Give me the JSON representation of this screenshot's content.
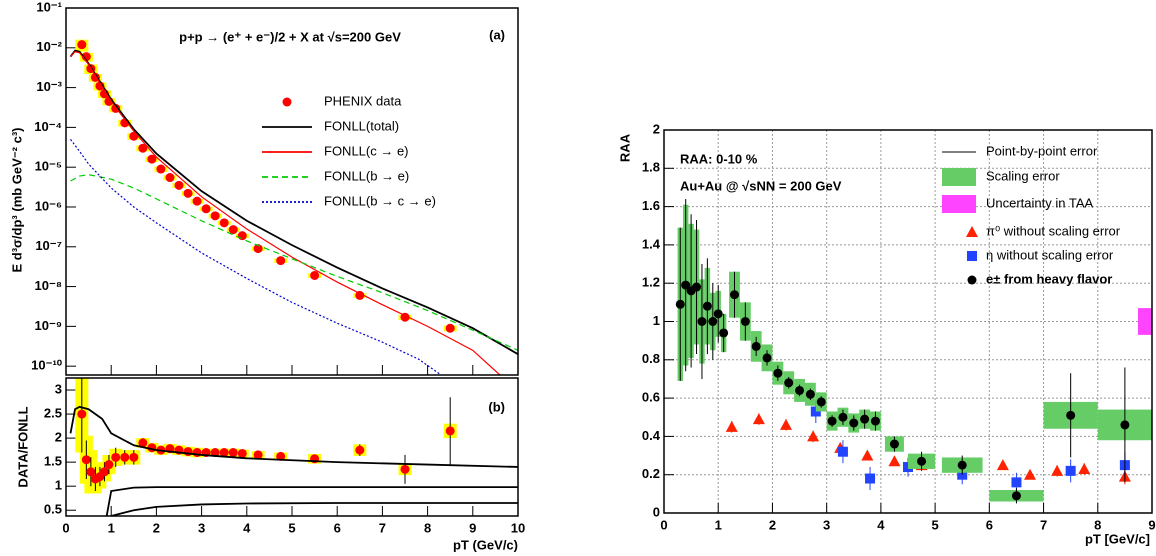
{
  "chart_data": [
    {
      "type": "scatter",
      "ylog": true,
      "panel_label": "(a)",
      "title": "p+p → (e⁺ + e⁻)/2 + X at √s=200 GeV",
      "ylabel": "E d³σ/dp³ (mb GeV⁻² c³)",
      "xlim": [
        0,
        10
      ],
      "xticks": [
        0,
        1,
        2,
        3,
        4,
        5,
        6,
        7,
        8,
        9,
        10
      ],
      "show_xtick_labels": false,
      "ylim": [
        6e-11,
        0.1
      ],
      "yticks": [
        {
          "value": 1e-10,
          "label": "10⁻¹⁰"
        },
        {
          "value": 1e-09,
          "label": "10⁻⁹"
        },
        {
          "value": 1e-08,
          "label": "10⁻⁸"
        },
        {
          "value": 1e-07,
          "label": "10⁻⁷"
        },
        {
          "value": 1e-06,
          "label": "10⁻⁶"
        },
        {
          "value": 1e-05,
          "label": "10⁻⁵"
        },
        {
          "value": 0.0001,
          "label": "10⁻⁴"
        },
        {
          "value": 0.001,
          "label": "10⁻³"
        },
        {
          "value": 0.01,
          "label": "10⁻²"
        },
        {
          "value": 0.1,
          "label": "10⁻¹"
        }
      ],
      "grid": false,
      "sys_color": "#ffff00",
      "series": [
        {
          "name": "PHENIX data",
          "mark": "circle",
          "color": "#ff0000",
          "x": [
            0.35,
            0.45,
            0.55,
            0.65,
            0.75,
            0.85,
            0.95,
            1.1,
            1.3,
            1.5,
            1.7,
            1.9,
            2.1,
            2.3,
            2.5,
            2.7,
            2.9,
            3.1,
            3.3,
            3.5,
            3.7,
            3.9,
            4.25,
            4.75,
            5.5,
            6.5,
            7.5,
            8.5
          ],
          "values": [
            0.012,
            0.006,
            0.003,
            0.0018,
            0.0011,
            0.0007,
            0.00045,
            0.0003,
            0.00013,
            6e-05,
            3e-05,
            1.6e-05,
            9e-06,
            5.5e-06,
            3.5e-06,
            2.2e-06,
            1.4e-06,
            9e-07,
            6e-07,
            4e-07,
            2.7e-07,
            1.9e-07,
            9e-08,
            4.5e-08,
            1.9e-08,
            6e-09,
            1.7e-09,
            9e-10
          ],
          "sys": [
            0.004,
            0.0015,
            0.0008,
            0.0004,
            0.00025,
            0.00015,
            9e-05,
            6e-05,
            2.5e-05,
            1.1e-05,
            5e-06,
            2.5e-06,
            1.4e-06,
            8e-07,
            5e-07,
            3e-07,
            1.9e-07,
            1.2e-07,
            8e-08,
            5e-08,
            3.5e-08,
            2.5e-08,
            1.2e-08,
            6e-09,
            2.5e-09,
            8e-10,
            2.5e-10,
            1.5e-10
          ]
        },
        {
          "name": "FONLL(total)",
          "mark": "line",
          "color": "#000000",
          "x": [
            0.1,
            0.2,
            0.3,
            0.5,
            1,
            1.5,
            2,
            3,
            4,
            5,
            6,
            7,
            8,
            9,
            10
          ],
          "values": [
            0.006,
            0.0085,
            0.008,
            0.004,
            0.0005,
            9e-05,
            2.2e-05,
            2.5e-06,
            4.5e-07,
            1.1e-07,
            3e-08,
            9e-09,
            3e-09,
            9e-10,
            2e-10
          ]
        },
        {
          "name": "FONLL(c → e)",
          "mark": "line",
          "color": "#ff0000",
          "x": [
            0.1,
            0.2,
            0.3,
            0.5,
            1,
            1.5,
            2,
            3,
            4,
            5,
            6,
            7,
            8,
            9,
            9.6
          ],
          "values": [
            0.006,
            0.008,
            0.0075,
            0.0038,
            0.00045,
            8e-05,
            1.8e-05,
            1.8e-06,
            2.8e-07,
            5.5e-08,
            1.3e-08,
            3.5e-09,
            1e-09,
            2.5e-10,
            6e-11
          ]
        },
        {
          "name": "FONLL(b → e)",
          "mark": "dashed",
          "color": "#00cc00",
          "x": [
            0.1,
            0.3,
            0.5,
            1,
            1.5,
            2,
            3,
            4,
            5,
            6,
            7,
            8,
            9,
            10
          ],
          "values": [
            4.5e-06,
            6e-06,
            6.5e-06,
            5e-06,
            3e-06,
            1.6e-06,
            4.5e-07,
            1.4e-07,
            5e-08,
            1.8e-08,
            7e-09,
            2.5e-09,
            8e-10,
            2.5e-10
          ]
        },
        {
          "name": "FONLL(b → c → e)",
          "mark": "dotted",
          "color": "#0000cc",
          "x": [
            0.1,
            0.3,
            0.5,
            1,
            1.5,
            2,
            3,
            4,
            5,
            6,
            7,
            7.8,
            8.3
          ],
          "values": [
            5e-05,
            2.5e-05,
            1.2e-05,
            3e-06,
            1e-06,
            4e-07,
            7e-08,
            1.6e-08,
            4e-09,
            1.2e-09,
            4e-10,
            1.5e-10,
            6e-11
          ]
        }
      ]
    },
    {
      "type": "scatter",
      "ylog": false,
      "panel_label": "(b)",
      "ylabel": "DATA/FONLL",
      "xlabel": "pT (GeV/c)",
      "xlim": [
        0,
        10
      ],
      "xticks": [
        0,
        1,
        2,
        3,
        4,
        5,
        6,
        7,
        8,
        9,
        10
      ],
      "show_xtick_labels": true,
      "ylim": [
        0.38,
        3.25
      ],
      "yticks": [
        0.5,
        1,
        1.5,
        2,
        2.5,
        3
      ],
      "grid": false,
      "sys_color": "#ffff00",
      "series": [
        {
          "mark": "circle",
          "color": "#ff0000",
          "x": [
            0.35,
            0.45,
            0.55,
            0.65,
            0.75,
            0.85,
            0.95,
            1.1,
            1.3,
            1.5,
            1.7,
            1.9,
            2.1,
            2.3,
            2.5,
            2.7,
            2.9,
            3.1,
            3.3,
            3.5,
            3.7,
            3.9,
            4.25,
            4.75,
            5.5,
            6.5,
            7.5,
            8.5
          ],
          "values": [
            2.5,
            1.55,
            1.3,
            1.15,
            1.2,
            1.3,
            1.45,
            1.6,
            1.6,
            1.6,
            1.9,
            1.8,
            1.75,
            1.78,
            1.75,
            1.72,
            1.7,
            1.7,
            1.7,
            1.7,
            1.7,
            1.68,
            1.65,
            1.62,
            1.57,
            1.75,
            1.35,
            2.15
          ],
          "errors": [
            0.8,
            0.4,
            0.3,
            0.25,
            0.2,
            0.2,
            0.2,
            0.2,
            0.15,
            0.15,
            0.1,
            0.08,
            0.08,
            0.08,
            0.06,
            0.05,
            0.05,
            0.05,
            0.05,
            0.05,
            0.05,
            0.05,
            0.05,
            0.06,
            0.08,
            0.12,
            0.3,
            0.7
          ],
          "sys": [
            0.8,
            0.5,
            0.45,
            0.3,
            0.25,
            0.2,
            0.2,
            0.18,
            0.15,
            0.15,
            0.1,
            0.1,
            0.1,
            0.1,
            0.1,
            0.1,
            0.1,
            0.08,
            0.08,
            0.08,
            0.08,
            0.08,
            0.08,
            0.08,
            0.1,
            0.12,
            0.12,
            0.15
          ]
        },
        {
          "mark": "line",
          "color": "#000000",
          "x": [
            0.1,
            0.2,
            0.3,
            0.5,
            0.8,
            1,
            1.5,
            2,
            3,
            4,
            6,
            8,
            10
          ],
          "values": [
            2.1,
            2.6,
            2.65,
            2.6,
            2.4,
            2.1,
            1.85,
            1.75,
            1.65,
            1.58,
            1.5,
            1.45,
            1.4
          ]
        },
        {
          "mark": "line",
          "color": "#000000",
          "x": [
            0.9,
            1,
            1.5,
            2,
            4,
            6,
            8,
            10
          ],
          "values": [
            0.38,
            0.9,
            0.97,
            0.98,
            0.98,
            0.98,
            0.98,
            0.98
          ]
        },
        {
          "mark": "line",
          "color": "#000000",
          "x": [
            1,
            1.5,
            2,
            3,
            4,
            6,
            8,
            10
          ],
          "values": [
            0.38,
            0.5,
            0.57,
            0.62,
            0.64,
            0.65,
            0.65,
            0.65
          ]
        }
      ]
    },
    {
      "type": "scatter",
      "ylog": false,
      "ylabel": "RAA",
      "xlabel": "pT [GeV/c]",
      "annotations": [
        "RAA: 0-10 %",
        "Au+Au @ √sNN = 200 GeV"
      ],
      "xlim": [
        0,
        9
      ],
      "xticks": [
        0,
        1,
        2,
        3,
        4,
        5,
        6,
        7,
        8,
        9
      ],
      "show_xtick_labels": true,
      "ylim": [
        0,
        2
      ],
      "yticks": [
        0,
        0.2,
        0.4,
        0.6,
        0.8,
        1,
        1.2,
        1.4,
        1.6,
        1.8,
        2
      ],
      "grid": true,
      "sys_color": "#66cc66",
      "stat_legend": "Point-by-point error",
      "sys_legend": "Scaling error",
      "taa": {
        "name": "Uncertainty in TAA",
        "value": 1,
        "error": 0.07,
        "color": "#ff44ff"
      },
      "series": [
        {
          "name": "π⁰ without scaling error",
          "mark": "triangle",
          "color": "#ff2200",
          "x": [
            1.25,
            1.75,
            2.25,
            2.75,
            3.25,
            3.75,
            4.25,
            4.75,
            5.25,
            5.75,
            6.25,
            6.75,
            7.25,
            7.75,
            8.5
          ],
          "values": [
            0.45,
            0.49,
            0.46,
            0.4,
            0.34,
            0.3,
            0.27,
            0.25,
            0.26,
            0.24,
            0.25,
            0.2,
            0.22,
            0.23,
            0.19
          ],
          "errors": [
            0.03,
            0.03,
            0.03,
            0.03,
            0.02,
            0.02,
            0.02,
            0.02,
            0.02,
            0.02,
            0.02,
            0.02,
            0.03,
            0.03,
            0.04
          ]
        },
        {
          "name": "η without scaling error",
          "mark": "square",
          "color": "#2244ff",
          "x": [
            2.8,
            3.3,
            3.8,
            4.5,
            5.5,
            6.5,
            7.5,
            8.5
          ],
          "values": [
            0.53,
            0.32,
            0.18,
            0.24,
            0.2,
            0.16,
            0.22,
            0.25
          ],
          "errors": [
            0.06,
            0.06,
            0.06,
            0.05,
            0.05,
            0.05,
            0.06,
            0.07
          ]
        },
        {
          "name": "e± from heavy flavor",
          "mark": "circle",
          "color": "#000000",
          "x": [
            0.3,
            0.4,
            0.5,
            0.6,
            0.7,
            0.8,
            0.9,
            1.0,
            1.1,
            1.3,
            1.5,
            1.7,
            1.9,
            2.1,
            2.3,
            2.5,
            2.7,
            2.9,
            3.1,
            3.3,
            3.5,
            3.7,
            3.9,
            4.25,
            4.75,
            5.5,
            6.5,
            7.5,
            8.5
          ],
          "values": [
            1.09,
            1.19,
            1.16,
            1.18,
            1.0,
            1.08,
            1.0,
            1.04,
            0.94,
            1.14,
            1.0,
            0.87,
            0.81,
            0.73,
            0.68,
            0.64,
            0.62,
            0.58,
            0.48,
            0.5,
            0.47,
            0.49,
            0.48,
            0.36,
            0.27,
            0.25,
            0.09,
            0.51,
            0.46
          ],
          "errors": [
            0.4,
            0.45,
            0.4,
            0.35,
            0.3,
            0.25,
            0.2,
            0.15,
            0.1,
            0.12,
            0.1,
            0.05,
            0.04,
            0.04,
            0.03,
            0.03,
            0.03,
            0.03,
            0.03,
            0.04,
            0.04,
            0.05,
            0.05,
            0.04,
            0.05,
            0.05,
            0.04,
            0.22,
            0.3
          ],
          "sys": [
            0.4,
            0.42,
            0.35,
            0.3,
            0.22,
            0.2,
            0.15,
            0.12,
            0.1,
            0.12,
            0.1,
            0.08,
            0.07,
            0.06,
            0.06,
            0.06,
            0.06,
            0.05,
            0.05,
            0.05,
            0.05,
            0.05,
            0.05,
            0.04,
            0.04,
            0.04,
            0.03,
            0.07,
            0.08
          ]
        }
      ]
    }
  ]
}
